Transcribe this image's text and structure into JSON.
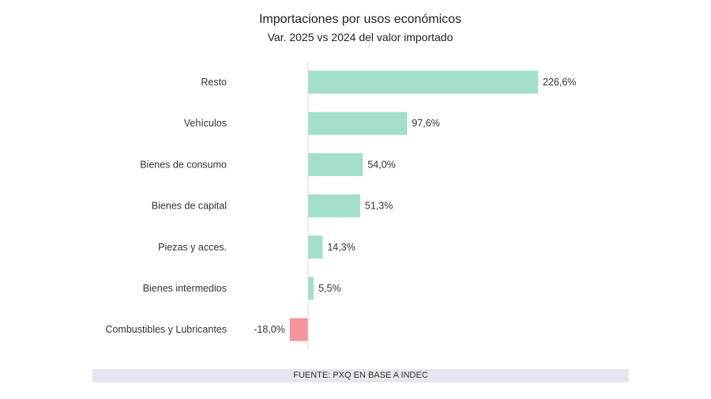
{
  "chart_data": {
    "type": "bar",
    "orientation": "horizontal",
    "title": "Importaciones por usos económicos",
    "subtitle": "Var. 2025 vs 2024 del valor importado",
    "categories": [
      "Resto",
      "Vehículos",
      "Bienes de consumo",
      "Bienes de capital",
      "Piezas y acces.",
      "Bienes intermedios",
      "Combustibles y Lubricantes"
    ],
    "values": [
      226.6,
      97.6,
      54.0,
      51.3,
      14.3,
      5.5,
      -18.0
    ],
    "data_labels": [
      "226,6%",
      "97,6%",
      "54,0%",
      "51,3%",
      "14,3%",
      "5,5%",
      "-18,0%"
    ],
    "unit": "%",
    "grid": false,
    "legend": "none",
    "colors": {
      "positive": "#a3dfc9",
      "negative": "#f4959c",
      "axis": "#d9d9d9"
    }
  },
  "footer": "FUENTE: PXQ EN BASE A INDEC"
}
